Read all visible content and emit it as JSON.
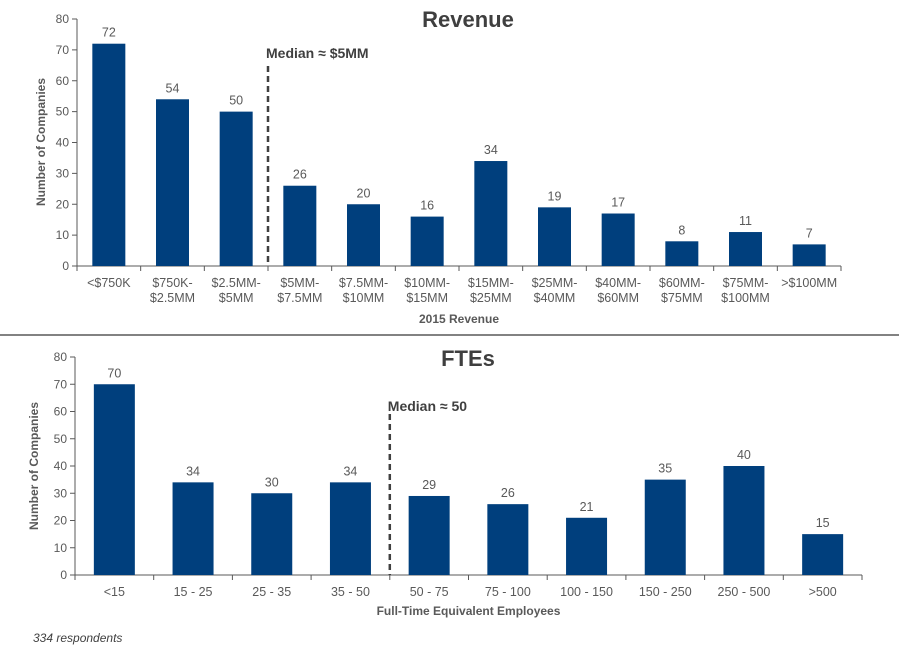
{
  "footnote": "334 respondents",
  "colors": {
    "bar": "#003f7d",
    "axis": "#595959",
    "median_line": "#404040",
    "separator": "#595959"
  },
  "chart_data": [
    {
      "type": "bar",
      "title": "Revenue",
      "xlabel": "2015 Revenue",
      "ylabel": "Number of Companies",
      "ylim": [
        0,
        80
      ],
      "yticks": [
        0,
        10,
        20,
        30,
        40,
        50,
        60,
        70,
        80
      ],
      "categories": [
        [
          "<$750K"
        ],
        [
          "$750K-",
          "$2.5MM"
        ],
        [
          "$2.5MM-",
          "$5MM"
        ],
        [
          "$5MM-",
          "$7.5MM"
        ],
        [
          "$7.5MM-",
          "$10MM"
        ],
        [
          "$10MM-",
          "$15MM"
        ],
        [
          "$15MM-",
          "$25MM"
        ],
        [
          "$25MM-",
          "$40MM"
        ],
        [
          "$40MM-",
          "$60MM"
        ],
        [
          "$60MM-",
          "$75MM"
        ],
        [
          "$75MM-",
          "$100MM"
        ],
        [
          ">$100MM"
        ]
      ],
      "values": [
        72,
        54,
        50,
        26,
        20,
        16,
        34,
        19,
        17,
        8,
        11,
        7
      ],
      "data_labels": true,
      "grid": false,
      "median": {
        "label": "Median ≈ $5MM",
        "after_category_index": 2
      }
    },
    {
      "type": "bar",
      "title": "FTEs",
      "xlabel": "Full-Time Equivalent Employees",
      "ylabel": "Number of Companies",
      "ylim": [
        0,
        80
      ],
      "yticks": [
        0,
        10,
        20,
        30,
        40,
        50,
        60,
        70,
        80
      ],
      "categories": [
        [
          "<15"
        ],
        [
          "15 - 25"
        ],
        [
          "25 - 35"
        ],
        [
          "35 - 50"
        ],
        [
          "50 - 75"
        ],
        [
          "75 - 100"
        ],
        [
          "100 - 150"
        ],
        [
          "150 - 250"
        ],
        [
          "250 - 500"
        ],
        [
          ">500"
        ]
      ],
      "values": [
        70,
        34,
        30,
        34,
        29,
        26,
        21,
        35,
        40,
        15
      ],
      "data_labels": true,
      "grid": false,
      "median": {
        "label": "Median ≈ 50",
        "after_category_index": 3
      }
    }
  ]
}
